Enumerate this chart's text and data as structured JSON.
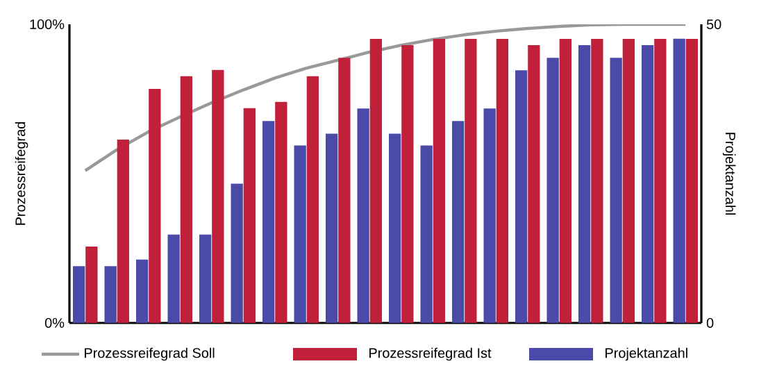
{
  "chart_data": {
    "type": "bar",
    "ylabel": "Prozessreifegrad",
    "y2label": "Projektanzahl",
    "categories": [
      null,
      null,
      null,
      null,
      null,
      null,
      null,
      null,
      null,
      null,
      null,
      null,
      null,
      null,
      null,
      null,
      null,
      null,
      null,
      null
    ],
    "ylim": [
      0,
      100
    ],
    "yticks": [
      {
        "value": 0,
        "label": "0%"
      },
      {
        "value": 100,
        "label": "100%"
      }
    ],
    "y2lim": [
      0,
      50
    ],
    "y2ticks": [
      0,
      50
    ],
    "legend": "bottom",
    "marker": "none",
    "series": [
      {
        "name": "Prozessreifegrad Soll",
        "type": "line",
        "color": "#999999",
        "values": [
          51,
          58,
          64,
          69,
          73.7,
          78,
          82,
          85.3,
          88,
          90.7,
          93,
          94.9,
          96.5,
          97.7,
          98.6,
          99.3,
          99.8,
          100,
          100,
          100
        ]
      },
      {
        "name": "Prozessreifegrad Ist",
        "color": "#c0203a",
        "values": [
          25.6,
          61.4,
          78.4,
          82.6,
          84.7,
          71.9,
          74,
          82.6,
          88.8,
          95.1,
          93,
          95.1,
          95.1,
          95.1,
          93,
          95.1,
          95.1,
          95.1,
          95.1,
          95.1
        ]
      },
      {
        "name": "Projektanzahl",
        "type": "bar",
        "axis": "y2",
        "color": "#4a4aa8",
        "values": [
          9.5,
          9.5,
          10.6,
          14.8,
          14.8,
          23.3,
          33.8,
          29.7,
          31.7,
          35.9,
          31.7,
          29.7,
          33.8,
          35.9,
          42.3,
          44.4,
          46.5,
          44.4,
          46.5,
          47.6
        ]
      }
    ]
  }
}
